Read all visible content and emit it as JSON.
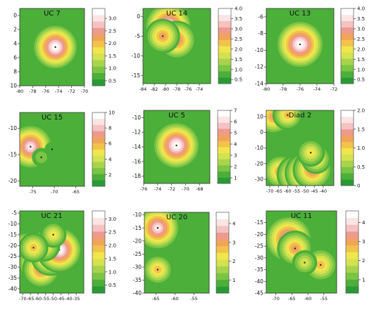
{
  "colors": {
    "scale": [
      "#2a9a35",
      "#4caf3a",
      "#7bc444",
      "#a8d44c",
      "#d2e250",
      "#f0e64c",
      "#f2c24a",
      "#f0a45a",
      "#ee9a8e",
      "#f5c2c2",
      "#fbe4e4",
      "#ffffff"
    ],
    "border": "#777777"
  },
  "chart_data": [
    {
      "type": "heatmap",
      "title": "UC 7",
      "xlim": [
        -80,
        -70
      ],
      "ylim": [
        10,
        -1
      ],
      "x_ticks": [
        -80,
        -78,
        -76,
        -74,
        -72,
        -70
      ],
      "x_tick_labels": [
        "-80",
        "-78",
        "-76",
        "-74",
        "-72",
        "-70"
      ],
      "y_ticks": [
        0,
        2,
        4,
        6,
        8,
        10
      ],
      "y_tick_labels": [
        "0",
        "2",
        "4",
        "6",
        "8",
        "10"
      ],
      "colorbar_ticks": [
        0.5,
        1.0,
        1.5,
        2.0,
        2.5,
        3.0
      ],
      "colorbar_tick_labels": [
        "0.5",
        "1.0",
        "1.5",
        "2.0",
        "2.5",
        "3.0"
      ],
      "colorbar_range": [
        0.3,
        3.4
      ],
      "peaks": [
        {
          "x": -74.5,
          "y": 4.5,
          "value": 3.3
        }
      ]
    },
    {
      "type": "heatmap",
      "title": "UC 14",
      "xlim": [
        -84,
        -72
      ],
      "ylim": [
        -17,
        2
      ],
      "x_ticks": [
        -84,
        -82,
        -80,
        -78,
        -76,
        -74
      ],
      "x_tick_labels": [
        "-84",
        "-82",
        "-80",
        "-78",
        "-76",
        "-74"
      ],
      "y_ticks": [
        0,
        -5,
        -10,
        -15
      ],
      "y_tick_labels": [
        "0",
        "-5",
        "-10",
        "-15"
      ],
      "colorbar_ticks": [
        0.5,
        1.0,
        1.5,
        2.0,
        2.5,
        3.0,
        3.5,
        4.0
      ],
      "colorbar_tick_labels": [
        "0.5",
        "1.0",
        "1.5",
        "2.0",
        "2.5",
        "3.0",
        "3.5",
        "4.0"
      ],
      "colorbar_range": [
        0.3,
        4.0
      ],
      "peaks": [
        {
          "x": -79.5,
          "y": -2.5,
          "value": 3.9
        },
        {
          "x": -78,
          "y": -6,
          "value": 3.0
        },
        {
          "x": -80.5,
          "y": -5,
          "value": 2.6
        }
      ]
    },
    {
      "type": "heatmap",
      "title": "UC 13",
      "xlim": [
        -80,
        -72
      ],
      "ylim": [
        -14,
        -5
      ],
      "x_ticks": [
        -80,
        -78,
        -76,
        -74,
        -72
      ],
      "x_tick_labels": [
        "-80",
        "-78",
        "-76",
        "-74",
        "-72"
      ],
      "y_ticks": [
        -6,
        -8,
        -10,
        -12,
        -14
      ],
      "y_tick_labels": [
        "-6",
        "-8",
        "-10",
        "-12",
        "-14"
      ],
      "colorbar_ticks": [
        0.5,
        1.0,
        1.5,
        2.0,
        2.5,
        3.0,
        3.5,
        4.0
      ],
      "colorbar_tick_labels": [
        "0.5",
        "1.0",
        "1.5",
        "2.0",
        "2.5",
        "3.0",
        "3.5",
        "4.0"
      ],
      "colorbar_range": [
        0.3,
        4.0
      ],
      "peaks": [
        {
          "x": -76,
          "y": -9.3,
          "value": 4.0
        }
      ]
    },
    {
      "type": "heatmap",
      "title": "UC 15",
      "xlim": [
        -78,
        -63
      ],
      "ylim": [
        -21,
        -7
      ],
      "x_ticks": [
        -75,
        -70,
        -65
      ],
      "x_tick_labels": [
        "-75",
        "-70",
        "-65"
      ],
      "y_ticks": [
        -10,
        -15,
        -20
      ],
      "y_tick_labels": [
        "-10",
        "-15",
        "-20"
      ],
      "colorbar_ticks": [
        2,
        4,
        6,
        8,
        10
      ],
      "colorbar_tick_labels": [
        "2",
        "4",
        "6",
        "8",
        "10"
      ],
      "colorbar_range": [
        0.5,
        10
      ],
      "peaks": [
        {
          "x": -75.5,
          "y": -13.5,
          "value": 9.5
        },
        {
          "x": -73,
          "y": -15.5,
          "value": 2.5
        },
        {
          "x": -70.5,
          "y": -14,
          "value": 1.5
        }
      ]
    },
    {
      "type": "heatmap",
      "title": "UC 5",
      "xlim": [
        -76,
        -66.5
      ],
      "ylim": [
        -19,
        -9
      ],
      "x_ticks": [
        -76,
        -74,
        -72,
        -70,
        -68
      ],
      "x_tick_labels": [
        "-76",
        "-74",
        "-72",
        "-70",
        "-68"
      ],
      "y_ticks": [
        -10,
        -12,
        -14,
        -16,
        -18
      ],
      "y_tick_labels": [
        "-10",
        "-12",
        "-14",
        "-16",
        "-18"
      ],
      "colorbar_ticks": [
        1,
        2,
        3,
        4,
        5,
        6,
        7
      ],
      "colorbar_tick_labels": [
        "1",
        "2",
        "3",
        "4",
        "5",
        "6",
        "7"
      ],
      "colorbar_range": [
        0.5,
        7
      ],
      "peaks": [
        {
          "x": -71.3,
          "y": -13.8,
          "value": 7.0
        }
      ]
    },
    {
      "type": "heatmap",
      "title": "Diad 2",
      "xlim": [
        -72,
        -34
      ],
      "ylim": [
        -34,
        14
      ],
      "x_ticks": [
        -70,
        -65,
        -60,
        -55,
        -50,
        -45,
        -40
      ],
      "x_tick_labels": [
        "-70",
        "-65",
        "-60",
        "-55",
        "-50",
        "-45",
        "-40"
      ],
      "y_ticks": [
        10,
        0,
        -10,
        -20,
        -30
      ],
      "y_tick_labels": [
        "10",
        "0",
        "-10",
        "-20",
        "-30"
      ],
      "colorbar_ticks": [
        0,
        0.5,
        1.0,
        1.5,
        2.0
      ],
      "colorbar_tick_labels": [
        "0",
        "0.5",
        "1.0",
        "1.5",
        "2.0"
      ],
      "colorbar_range": [
        0,
        2.0
      ],
      "peaks": [
        {
          "x": -68,
          "y": 10,
          "value": 1.3
        },
        {
          "x": -60,
          "y": 11,
          "value": 1.0
        },
        {
          "x": -64,
          "y": -25,
          "value": 1.2
        },
        {
          "x": -55,
          "y": -27,
          "value": 1.5
        },
        {
          "x": -50,
          "y": -26,
          "value": 1.6
        },
        {
          "x": -46,
          "y": -24,
          "value": 1.5
        },
        {
          "x": -44,
          "y": -17,
          "value": 1.0
        },
        {
          "x": -47,
          "y": -13,
          "value": 0.9
        }
      ]
    },
    {
      "type": "heatmap",
      "title": "UC 21",
      "xlim": [
        -72,
        -30
      ],
      "ylim": [
        -42,
        -4
      ],
      "x_ticks": [
        -70,
        -65,
        -60,
        -55,
        -50,
        -45,
        -40,
        -35
      ],
      "x_tick_labels": [
        "-70",
        "-65",
        "-60",
        "-55",
        "-50",
        "-45",
        "-40",
        "-35"
      ],
      "y_ticks": [
        -5,
        -10,
        -15,
        -20,
        -25,
        -30,
        -35,
        -40
      ],
      "y_tick_labels": [
        "-5",
        "-10",
        "-15",
        "-20",
        "-25",
        "-30",
        "-35",
        "-40"
      ],
      "colorbar_ticks": [
        0.5,
        1.0,
        1.5,
        2.0,
        2.5,
        3.0
      ],
      "colorbar_tick_labels": [
        "0.5",
        "1.0",
        "1.5",
        "2.0",
        "2.5",
        "3.0"
      ],
      "colorbar_range": [
        0.2,
        3.3
      ],
      "peaks": [
        {
          "x": -68,
          "y": -24,
          "value": 3.1
        },
        {
          "x": -62,
          "y": -28,
          "value": 2.3
        },
        {
          "x": -58,
          "y": -31,
          "value": 2.5
        },
        {
          "x": -52,
          "y": -25,
          "value": 2.6
        },
        {
          "x": -46,
          "y": -22,
          "value": 3.2
        },
        {
          "x": -56,
          "y": -20,
          "value": 2.0
        },
        {
          "x": -50,
          "y": -15,
          "value": 1.5
        },
        {
          "x": -63,
          "y": -21,
          "value": 1.8
        }
      ]
    },
    {
      "type": "heatmap",
      "title": "UC 20",
      "xlim": [
        -68,
        -51
      ],
      "ylim": [
        -40,
        -9
      ],
      "x_ticks": [
        -65,
        -60,
        -55
      ],
      "x_tick_labels": [
        "-65",
        "-60",
        "-55"
      ],
      "y_ticks": [
        -10,
        -15,
        -20,
        -25,
        -30,
        -35,
        -40
      ],
      "y_tick_labels": [
        "-10",
        "-15",
        "-20",
        "-25",
        "-30",
        "-35",
        "-40"
      ],
      "colorbar_ticks": [
        1,
        2,
        3,
        4
      ],
      "colorbar_tick_labels": [
        "1",
        "2",
        "3",
        "4"
      ],
      "colorbar_range": [
        0.3,
        4.6
      ],
      "peaks": [
        {
          "x": -64.5,
          "y": -15,
          "value": 4.3
        },
        {
          "x": -64.5,
          "y": -31,
          "value": 2.6
        }
      ]
    },
    {
      "type": "heatmap",
      "title": "UC 11",
      "xlim": [
        -73,
        -51
      ],
      "ylim": [
        -45,
        -10
      ],
      "x_ticks": [
        -70,
        -65,
        -60,
        -55
      ],
      "x_tick_labels": [
        "-70",
        "-65",
        "-60",
        "-55"
      ],
      "y_ticks": [
        -15,
        -20,
        -25,
        -30,
        -35,
        -40,
        -45
      ],
      "y_tick_labels": [
        "-15",
        "-20",
        "-25",
        "-30",
        "-35",
        "-40",
        "-45"
      ],
      "colorbar_ticks": [
        1,
        2,
        3,
        4
      ],
      "colorbar_tick_labels": [
        "1",
        "2",
        "3",
        "4"
      ],
      "colorbar_range": [
        0.3,
        4.6
      ],
      "peaks": [
        {
          "x": -66,
          "y": -22,
          "value": 4.3
        },
        {
          "x": -64,
          "y": -26,
          "value": 3.0
        },
        {
          "x": -56,
          "y": -33,
          "value": 2.8
        },
        {
          "x": -61,
          "y": -32,
          "value": 1.8
        }
      ]
    }
  ]
}
